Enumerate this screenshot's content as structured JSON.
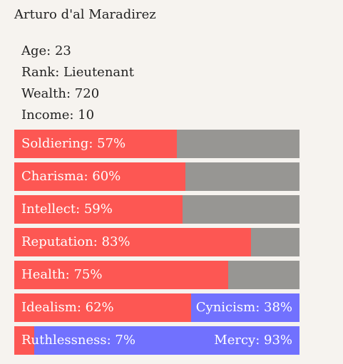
{
  "character": {
    "name": "Arturo d'al Maradirez"
  },
  "stats": [
    {
      "text": "Age: 23"
    },
    {
      "text": "Rank: Lieutenant"
    },
    {
      "text": "Wealth: 720"
    },
    {
      "text": "Income: 10"
    }
  ],
  "bars": [
    {
      "label": "Soldiering: 57%",
      "value": 0.57
    },
    {
      "label": "Charisma: 60%",
      "value": 0.6
    },
    {
      "label": "Intellect: 59%",
      "value": 0.59
    },
    {
      "label": "Reputation: 83%",
      "value": 0.83
    },
    {
      "label": "Health: 75%",
      "value": 0.75
    }
  ],
  "opposed_bars": [
    {
      "left_label": "Idealism: 62%",
      "right_label": "Cynicism: 38%",
      "value": 0.62
    },
    {
      "left_label": "Ruthlessness: 7%",
      "right_label": "Mercy: 93%",
      "value": 0.07
    }
  ],
  "colors": {
    "background": "#f6f3ef",
    "fill": "#fd5753",
    "track": "#979693",
    "opposed": "#7171fe",
    "label_text": "#ffffff"
  }
}
